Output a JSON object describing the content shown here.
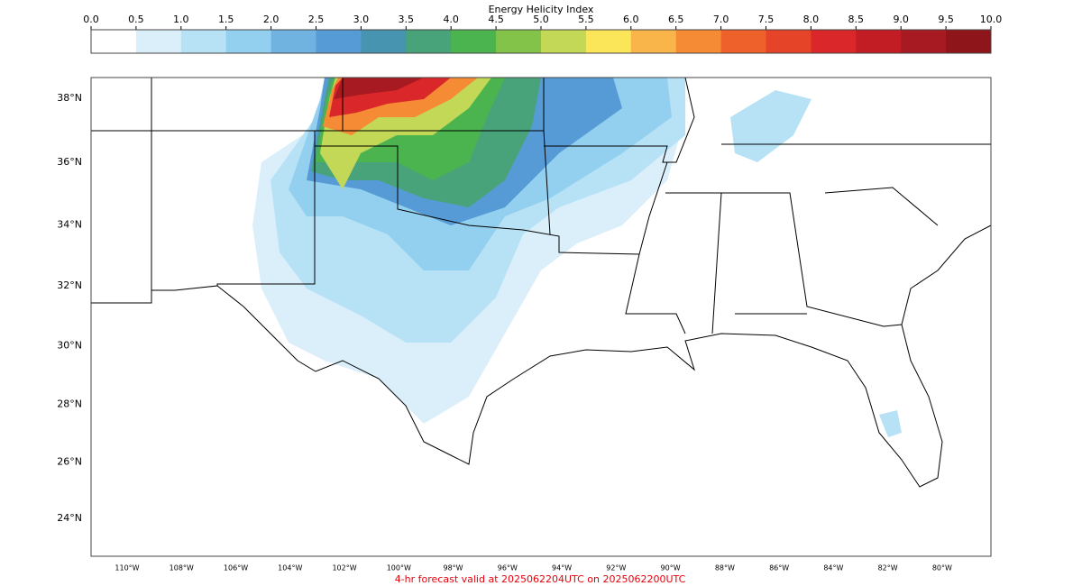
{
  "colorbar": {
    "title": "Energy Helicity Index",
    "ticks": [
      {
        "value": 0,
        "label": "0.0"
      },
      {
        "value": 0.5,
        "label": "0.5"
      },
      {
        "value": 1,
        "label": "1.0"
      },
      {
        "value": 1.5,
        "label": "1.5"
      },
      {
        "value": 2,
        "label": "2.0"
      },
      {
        "value": 2.5,
        "label": "2.5"
      },
      {
        "value": 3,
        "label": "3.0"
      },
      {
        "value": 3.5,
        "label": "3.5"
      },
      {
        "value": 4,
        "label": "4.0"
      },
      {
        "value": 4.5,
        "label": "4.5"
      },
      {
        "value": 5,
        "label": "5.0"
      },
      {
        "value": 5.5,
        "label": "5.5"
      },
      {
        "value": 6,
        "label": "6.0"
      },
      {
        "value": 6.5,
        "label": "6.5"
      },
      {
        "value": 7,
        "label": "7.0"
      },
      {
        "value": 7.5,
        "label": "7.5"
      },
      {
        "value": 8,
        "label": "8.0"
      },
      {
        "value": 8.5,
        "label": "8.5"
      },
      {
        "value": 9,
        "label": "9.0"
      },
      {
        "value": 9.5,
        "label": "9.5"
      },
      {
        "value": 10,
        "label": "10.0"
      }
    ],
    "colors": [
      "#ffffff",
      "#dbeffb",
      "#b7e2f6",
      "#93d0f0",
      "#70b2e0",
      "#579bd6",
      "#4694b0",
      "#48a37a",
      "#4bb44e",
      "#83c34a",
      "#c2d856",
      "#fbe558",
      "#f9b54a",
      "#f68b35",
      "#ef612a",
      "#e54428",
      "#d9272a",
      "#c21d25",
      "#a81a21",
      "#8e161b"
    ]
  },
  "map": {
    "lat_labels": [
      {
        "value": 38,
        "label": "38°N"
      },
      {
        "value": 36,
        "label": "36°N"
      },
      {
        "value": 34,
        "label": "34°N"
      },
      {
        "value": 32,
        "label": "32°N"
      },
      {
        "value": 30,
        "label": "30°N"
      },
      {
        "value": 28,
        "label": "28°N"
      },
      {
        "value": 26,
        "label": "26°N"
      },
      {
        "value": 24,
        "label": "24°N"
      }
    ],
    "lon_labels": [
      {
        "value": -110,
        "label": "110°W"
      },
      {
        "value": -108,
        "label": "108°W"
      },
      {
        "value": -106,
        "label": "106°W"
      },
      {
        "value": -104,
        "label": "104°W"
      },
      {
        "value": -102,
        "label": "102°W"
      },
      {
        "value": -100,
        "label": "100°W"
      },
      {
        "value": -98,
        "label": "98°W"
      },
      {
        "value": -96,
        "label": "96°W"
      },
      {
        "value": -94,
        "label": "94°W"
      },
      {
        "value": -92,
        "label": "92°W"
      },
      {
        "value": -90,
        "label": "90°W"
      },
      {
        "value": -88,
        "label": "88°W"
      },
      {
        "value": -86,
        "label": "86°W"
      },
      {
        "value": -84,
        "label": "84°W"
      },
      {
        "value": -82,
        "label": "82°W"
      },
      {
        "value": -80,
        "label": "80°W"
      }
    ]
  },
  "caption": "4-hr forecast valid at 2025062204UTC on 2025062200UTC"
}
